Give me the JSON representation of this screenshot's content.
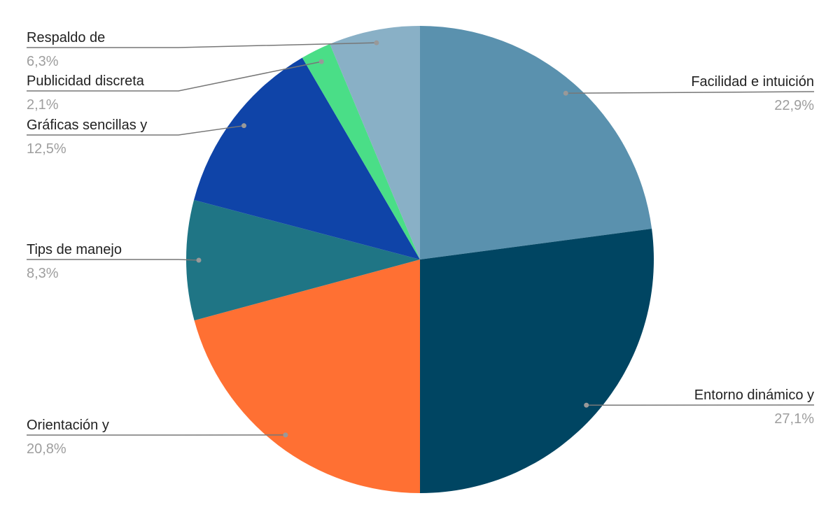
{
  "chart_data": {
    "type": "pie",
    "categories": [
      "Facilidad e intuición",
      "Entorno dinámico y",
      "Orientación y",
      "Tips de manejo",
      "Gráficas sencillas y",
      "Publicidad discreta",
      "Respaldo de"
    ],
    "values": [
      22.9,
      27.1,
      20.8,
      8.3,
      12.5,
      2.1,
      6.3
    ],
    "value_labels": [
      "22,9%",
      "27,1%",
      "20,8%",
      "8,3%",
      "12,5%",
      "2,1%",
      "6,3%"
    ],
    "colors": [
      "#5a91ae",
      "#004562",
      "#ff7033",
      "#1f7585",
      "#0f44a8",
      "#4ade87",
      "#89b0c6"
    ]
  }
}
